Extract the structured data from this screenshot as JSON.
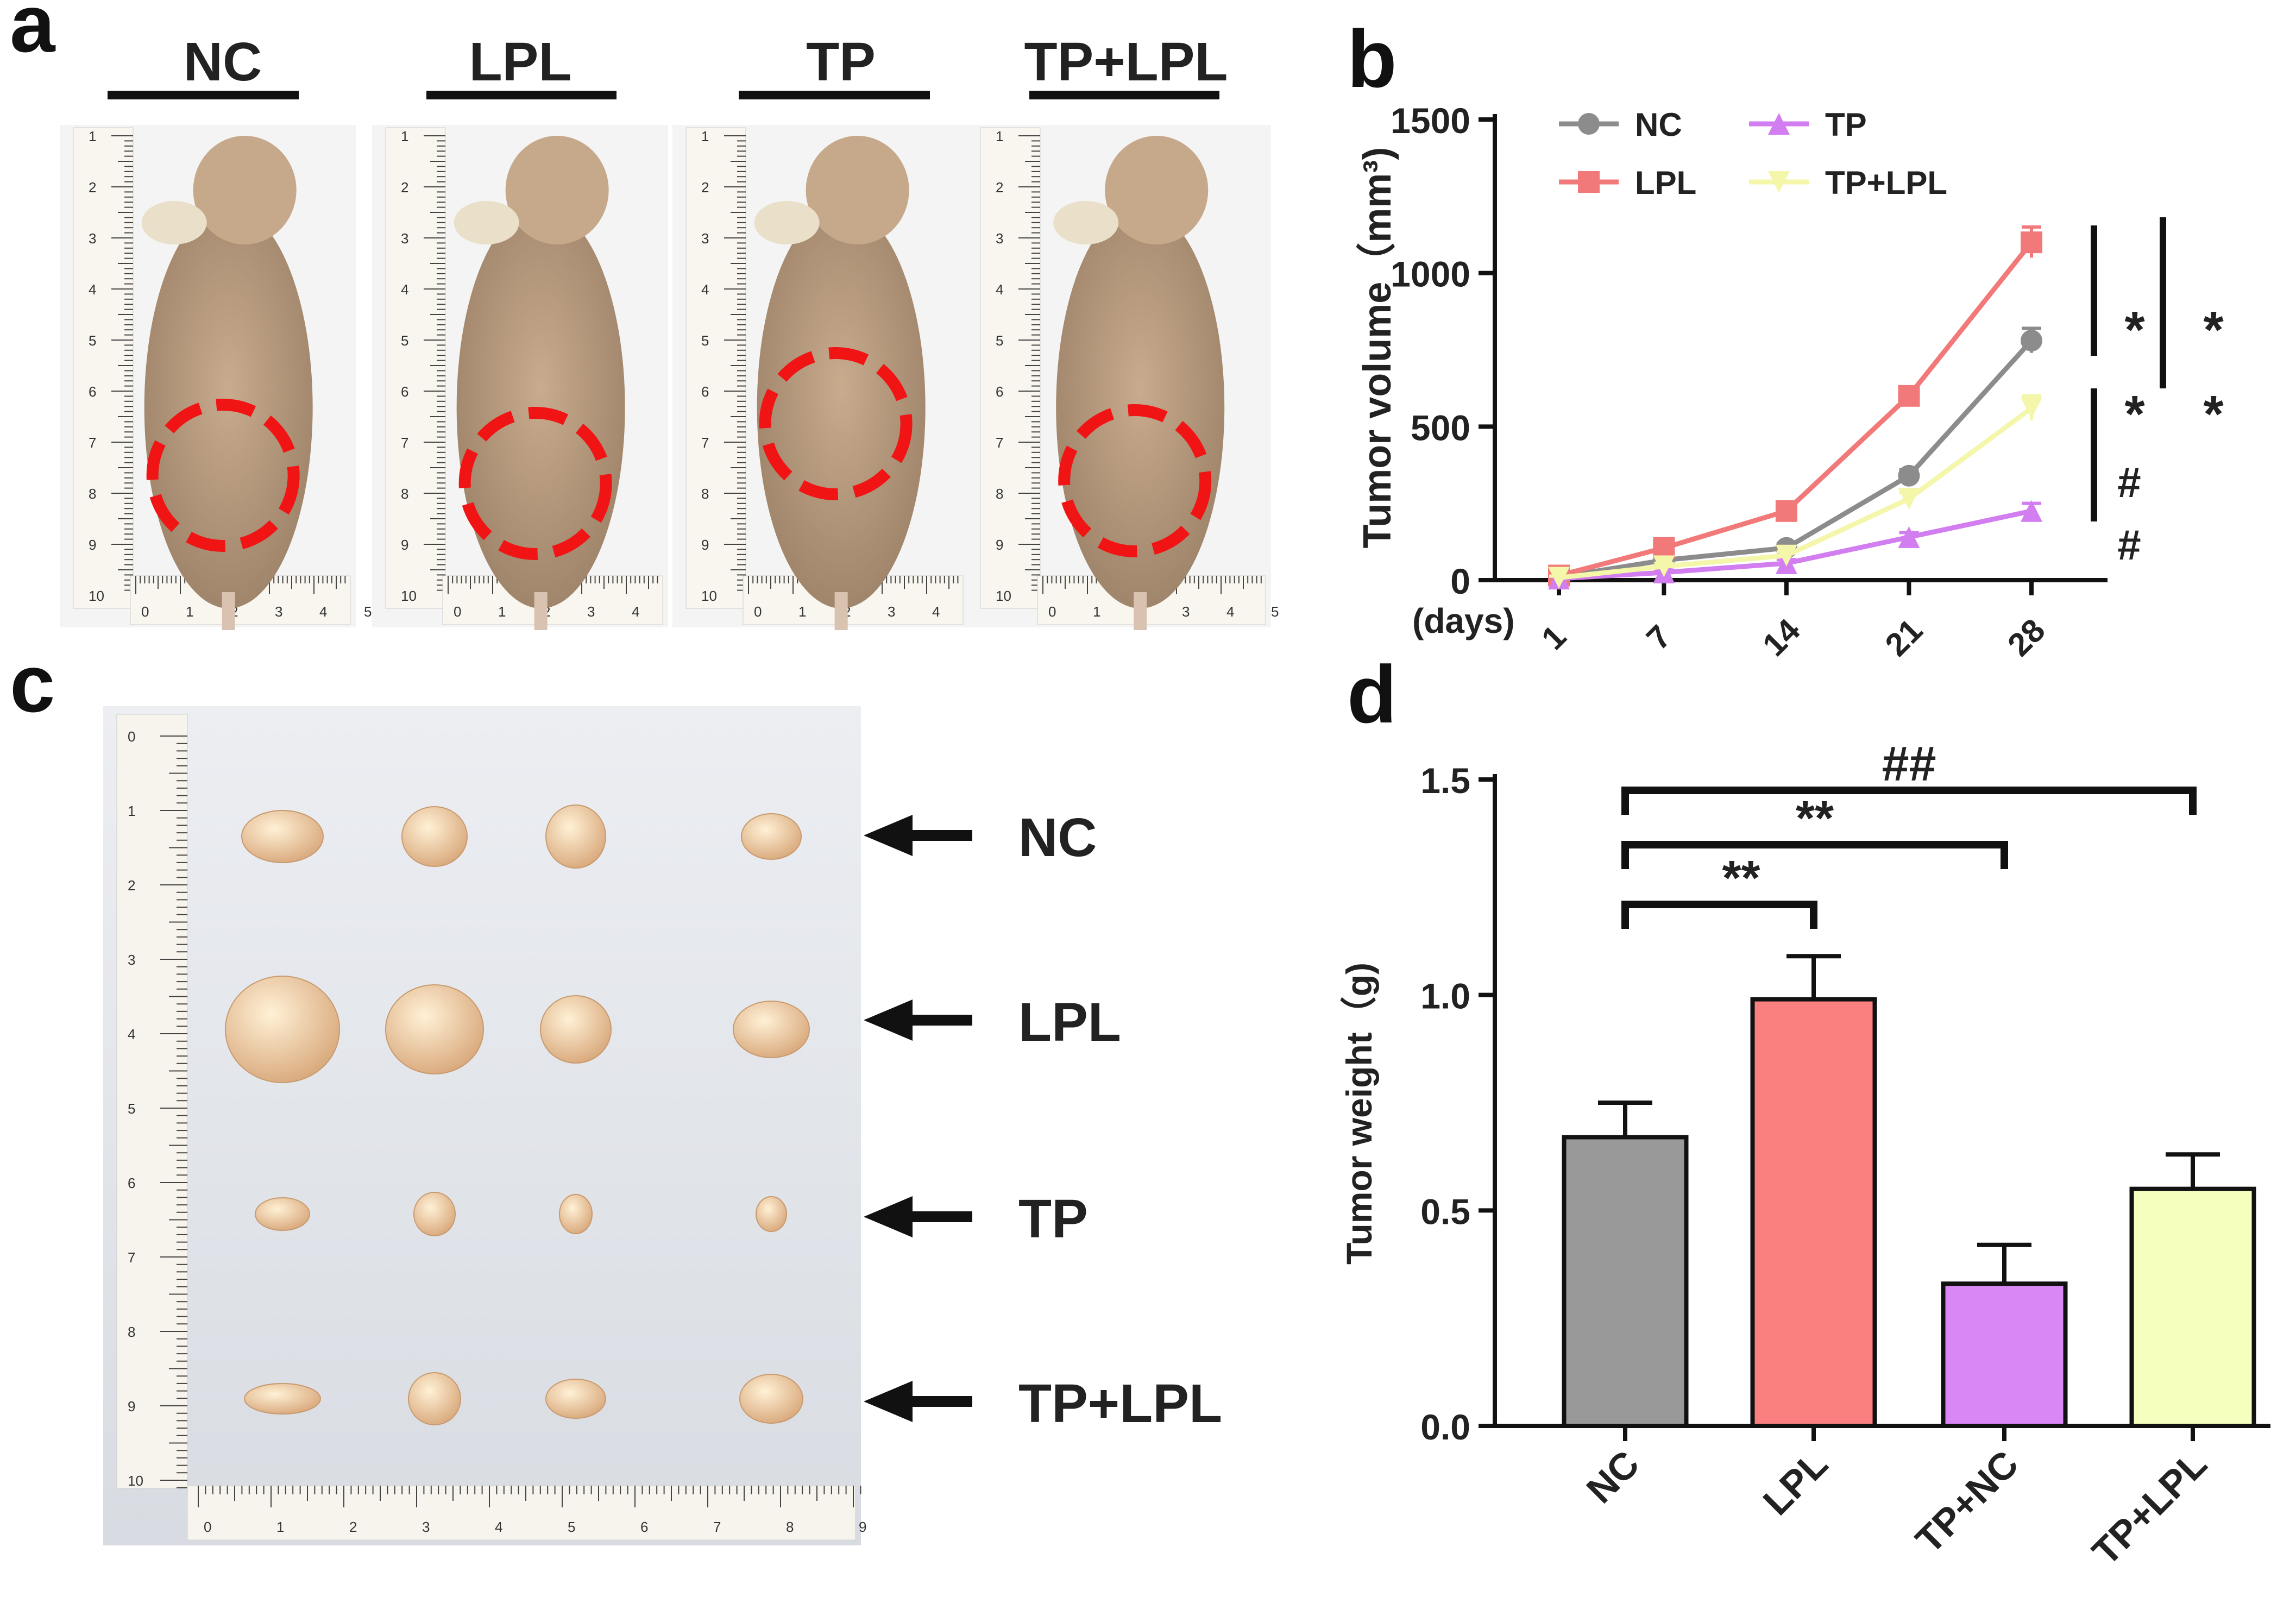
{
  "panels": {
    "a": {
      "letter": "a",
      "groups": [
        "NC",
        "LPL",
        "TP",
        "TP+LPL"
      ],
      "ruler_numbers": [
        "1",
        "2",
        "3",
        "4",
        "5",
        "6",
        "7",
        "8",
        "9",
        "10"
      ],
      "ruler_bottom_numbers": [
        "0",
        "1",
        "2",
        "3",
        "4",
        "5"
      ]
    },
    "b": {
      "letter": "b"
    },
    "c": {
      "letter": "c",
      "row_labels": [
        "NC",
        "LPL",
        "TP",
        "TP+LPL"
      ],
      "ruler_numbers": [
        "0",
        "1",
        "2",
        "3",
        "4",
        "5",
        "6",
        "7",
        "8",
        "9",
        "10"
      ],
      "ruler_bottom_numbers": [
        "0",
        "1",
        "2",
        "3",
        "4",
        "5",
        "6",
        "7",
        "8",
        "9"
      ]
    },
    "d": {
      "letter": "d"
    }
  },
  "chart_data": [
    {
      "type": "line",
      "ylabel": "Tumor volume（mm³)",
      "xlabel": "(days)",
      "x": [
        1,
        7,
        14,
        21,
        28
      ],
      "x_tick_labels": [
        "1",
        "7",
        "14",
        "21",
        "28"
      ],
      "ylim": [
        0,
        1500
      ],
      "y_ticks": [
        0,
        500,
        1000,
        1500
      ],
      "series": [
        {
          "name": "NC",
          "values": [
            10,
            65,
            105,
            340,
            780
          ],
          "errors": [
            5,
            12,
            15,
            20,
            40
          ],
          "color": "#8c8c8c",
          "marker": "circle"
        },
        {
          "name": "LPL",
          "values": [
            15,
            105,
            225,
            600,
            1100
          ],
          "errors": [
            5,
            12,
            15,
            20,
            50
          ],
          "color": "#f2797a",
          "marker": "square"
        },
        {
          "name": "TP",
          "values": [
            5,
            25,
            55,
            140,
            225
          ],
          "errors": [
            5,
            8,
            12,
            15,
            25
          ],
          "color": "#d27df0",
          "marker": "triangle"
        },
        {
          "name": "TP+LPL",
          "values": [
            8,
            45,
            80,
            265,
            560
          ],
          "errors": [
            5,
            10,
            12,
            20,
            40
          ],
          "color": "#f4f6aa",
          "marker": "triangle-down"
        }
      ],
      "legend_order": [
        "NC",
        "TP",
        "LPL",
        "TP+LPL"
      ],
      "legend_position": "top-left",
      "annotations": [
        "*",
        "*",
        "#",
        "#",
        "*",
        "*"
      ]
    },
    {
      "type": "bar",
      "ylabel": "Tumor weight（g)",
      "categories": [
        "NC",
        "LPL",
        "TP+NC",
        "TP+LPL"
      ],
      "values": [
        0.67,
        0.99,
        0.33,
        0.55
      ],
      "errors": [
        0.08,
        0.1,
        0.09,
        0.08
      ],
      "colors": [
        "#999999",
        "#fa8080",
        "#d987f5",
        "#f5ffbe"
      ],
      "ylim": [
        0,
        1.5
      ],
      "y_ticks": [
        "0.0",
        "0.5",
        "1.0",
        "1.5"
      ],
      "significance": [
        {
          "from": "NC",
          "to": "LPL",
          "label": "**"
        },
        {
          "from": "NC",
          "to": "TP+NC",
          "label": "**"
        },
        {
          "from": "NC",
          "to": "TP+LPL",
          "label": "##"
        }
      ]
    }
  ]
}
